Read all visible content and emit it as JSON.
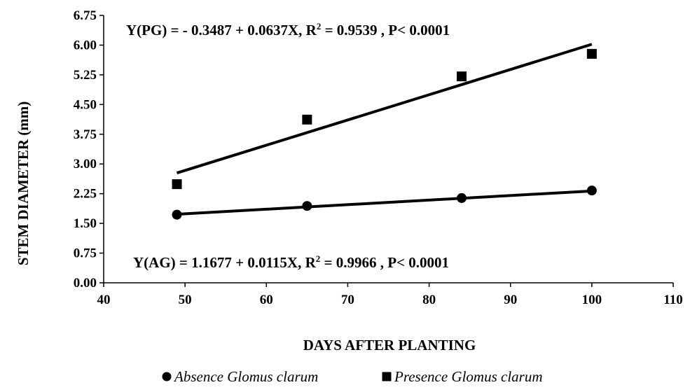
{
  "chart_data": {
    "type": "scatter",
    "xlabel": "DAYS AFTER PLANTING",
    "ylabel": "STEM DIAMETER (mm)",
    "xlim": [
      40,
      110
    ],
    "ylim": [
      0,
      6.75
    ],
    "x_ticks": [
      "40",
      "50",
      "60",
      "70",
      "80",
      "90",
      "100",
      "110"
    ],
    "y_ticks": [
      "0.00",
      "0.75",
      "1.50",
      "2.25",
      "3.00",
      "3.75",
      "4.50",
      "5.25",
      "6.00",
      "6.75"
    ],
    "grid": false,
    "legend_position": "bottom",
    "series": [
      {
        "name": "Absence Glomus clarum",
        "marker": "circle",
        "color": "#000000",
        "x": [
          49,
          65,
          84,
          100
        ],
        "y": [
          1.72,
          1.94,
          2.14,
          2.33
        ],
        "trendline": {
          "intercept": 1.1677,
          "slope": 0.0115
        },
        "equation": {
          "prefix": "Y(AG) = 1.1677 + 0.0115X, R",
          "sup": "2",
          "suffix": " = 0.9966 , P< 0.0001"
        }
      },
      {
        "name": "Presence Glomus clarum",
        "marker": "square",
        "color": "#000000",
        "x": [
          49,
          65,
          84,
          100
        ],
        "y": [
          2.49,
          4.12,
          5.21,
          5.78
        ],
        "trendline": {
          "intercept": -0.3487,
          "slope": 0.0637
        },
        "equation": {
          "prefix": "Y(PG) = - 0.3487 + 0.0637X, R",
          "sup": "2",
          "suffix": " = 0.9539 , P< 0.0001"
        }
      }
    ]
  }
}
